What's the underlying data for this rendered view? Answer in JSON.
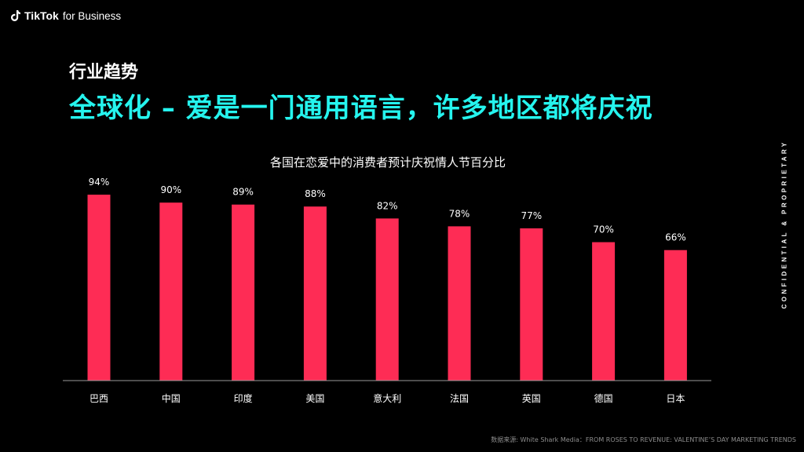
{
  "header": {
    "brand": "TikTok",
    "brand_sub": "for Business",
    "kicker": "行业趋势",
    "title": "全球化 – 爱是一门通用语言，许多地区都将庆祝",
    "side_label": "CONFIDENTIAL & PROPRIETARY"
  },
  "footer": {
    "source": "数据来源: White Shark Media：FROM ROSES TO REVENUE: VALENTINE’S DAY MARKETING TRENDS"
  },
  "colors": {
    "bar": "#FE2C55",
    "title": "#25F4EE",
    "background": "#000000"
  },
  "chart_data": {
    "type": "bar",
    "title": "各国在恋爱中的消费者预计庆祝情人节百分比",
    "categories": [
      "巴西",
      "中国",
      "印度",
      "美国",
      "意大利",
      "法国",
      "英国",
      "德国",
      "日本"
    ],
    "values": [
      94,
      90,
      89,
      88,
      82,
      78,
      77,
      70,
      66
    ],
    "value_suffix": "%",
    "ylim": [
      0,
      100
    ],
    "grid": false,
    "legend": "none"
  }
}
